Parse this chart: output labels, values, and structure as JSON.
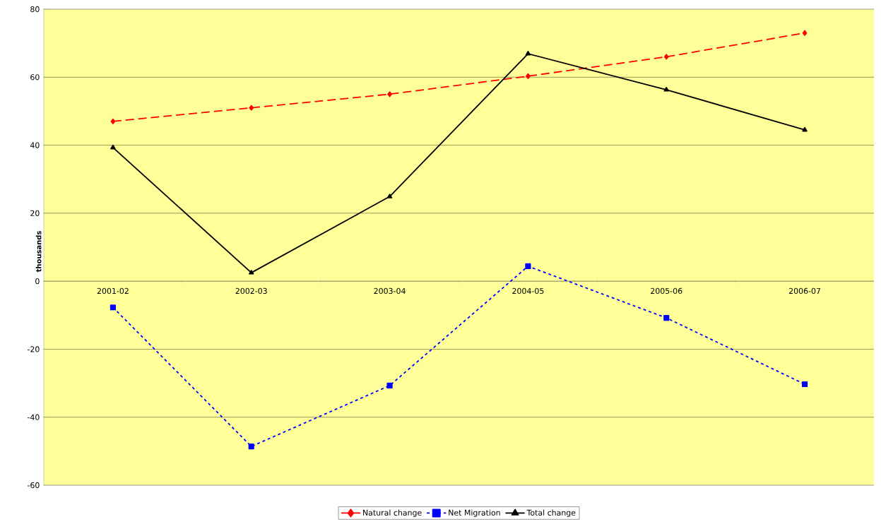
{
  "chart_data": {
    "type": "line",
    "ylabel": "thousands",
    "categories": [
      "2001-02",
      "2002-03",
      "2003-04",
      "2004-05",
      "2005-06",
      "2006-07"
    ],
    "series": [
      {
        "name": "Natural change",
        "color": "#ff0000",
        "marker": "diamond",
        "line_style": "dashed",
        "values": [
          47,
          51,
          55,
          60.3,
          66,
          73
        ]
      },
      {
        "name": "Net Migration",
        "color": "#0000ff",
        "marker": "square",
        "line_style": "dotted",
        "values": [
          -7.7,
          -48.6,
          -30.7,
          4.4,
          -10.8,
          -30.3
        ]
      },
      {
        "name": "Total change",
        "color": "#000000",
        "marker": "triangle",
        "line_style": "solid",
        "values": [
          39.3,
          2.5,
          24.9,
          66.9,
          56.3,
          44.5
        ]
      }
    ],
    "ylim": [
      -60,
      80
    ],
    "yticks": [
      -60,
      -40,
      -20,
      0,
      20,
      40,
      60,
      80
    ],
    "grid": "y",
    "legend": "bottom"
  }
}
